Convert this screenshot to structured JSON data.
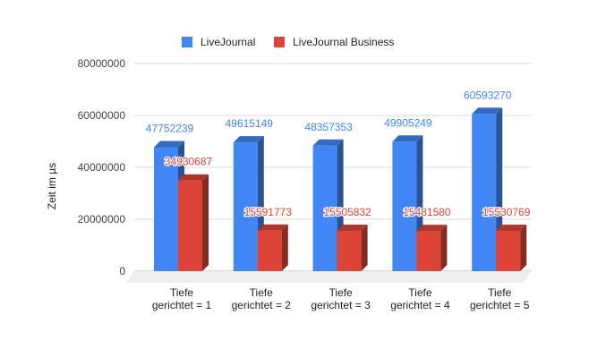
{
  "chart_data": {
    "type": "bar",
    "style": "3d-clustered",
    "ylabel": "Zeit im µs",
    "ylim": [
      0,
      80000000
    ],
    "yticks": [
      "0",
      "20000000",
      "40000000",
      "60000000",
      "80000000"
    ],
    "grid": true,
    "legend_position": "top",
    "categories": [
      [
        "Tiefe",
        "gerichtet = 1"
      ],
      [
        "Tiefe",
        "gerichtet = 2"
      ],
      [
        "Tiefe",
        "gerichtet = 3"
      ],
      [
        "Tiefe",
        "gerichtet = 4"
      ],
      [
        "Tiefe",
        "gerichtet = 5"
      ]
    ],
    "series": [
      {
        "name": "LiveJournal",
        "color": "#4285f4",
        "label_color": "#4285f4",
        "values": [
          47752239,
          49615149,
          48357353,
          49905249,
          60593270
        ],
        "labels": [
          "47752239",
          "49615149",
          "48357353",
          "49905249",
          "60593270"
        ]
      },
      {
        "name": "LiveJournal Business",
        "color": "#db4437",
        "label_color": "#db4437",
        "values": [
          34930687,
          15591773,
          15505832,
          15481580,
          15530769
        ],
        "labels": [
          "34930687",
          "15591773",
          "15505832",
          "15481580",
          "15530769"
        ]
      }
    ]
  }
}
